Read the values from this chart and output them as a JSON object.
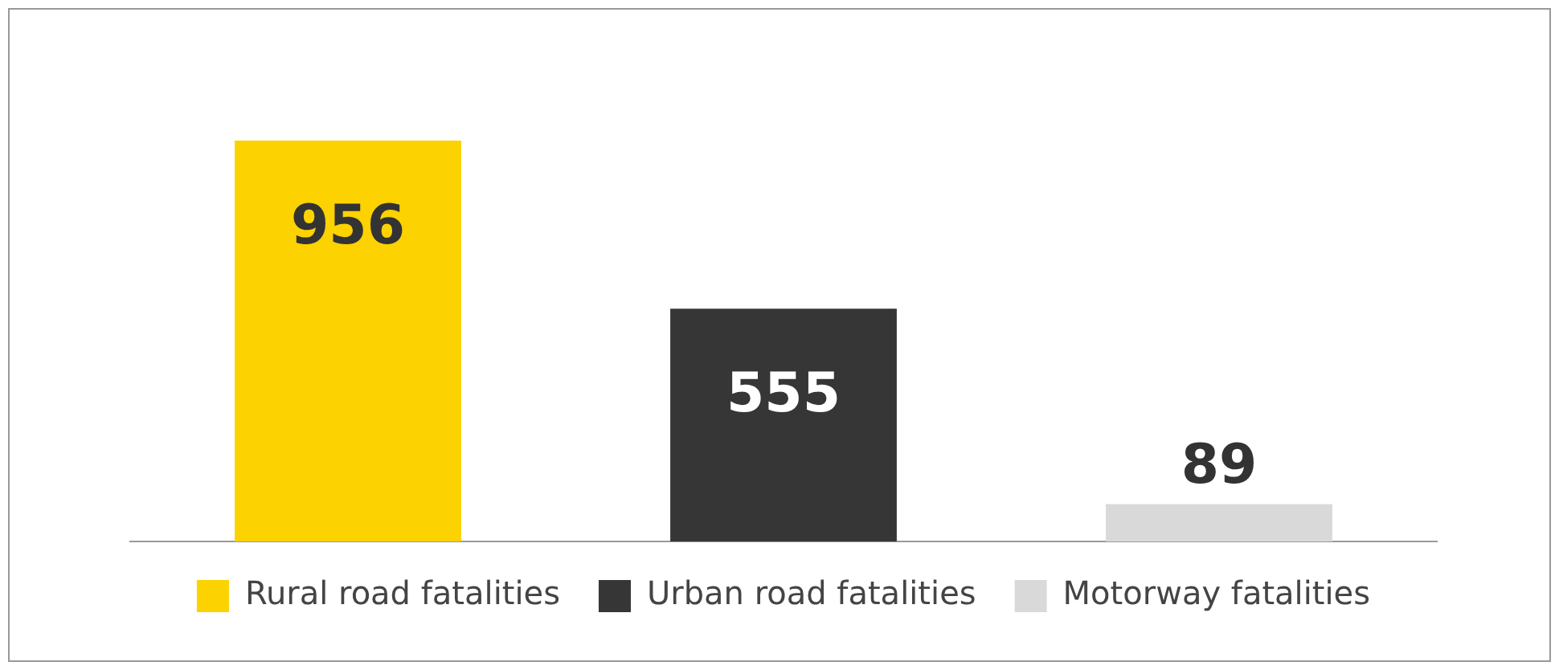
{
  "chart_data": {
    "type": "bar",
    "categories": [
      null,
      null,
      null
    ],
    "series": [
      {
        "name": "Rural road fatalities",
        "color": "#fcd200",
        "values": [
          956,
          null,
          null
        ]
      },
      {
        "name": "Urban road fatalities",
        "color": "#363636",
        "values": [
          null,
          555,
          null
        ]
      },
      {
        "name": "Motorway fatalities",
        "color": "#d9d9d9",
        "values": [
          null,
          null,
          89
        ]
      }
    ],
    "stacked": true,
    "data_labels": true,
    "grid": false,
    "legend": "bottom"
  }
}
